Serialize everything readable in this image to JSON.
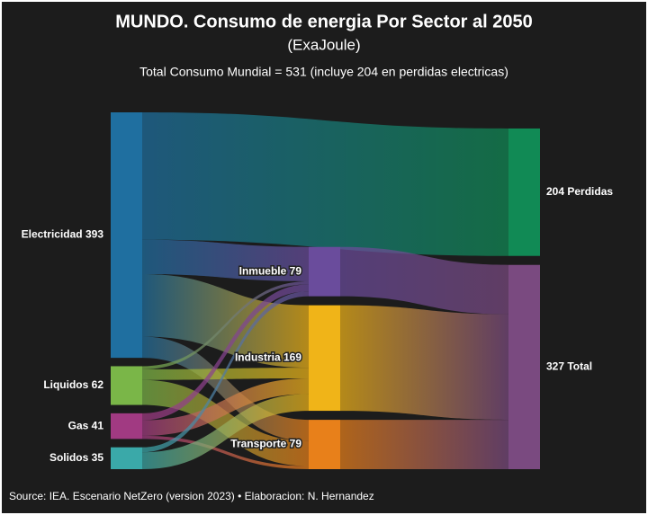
{
  "chart_data": {
    "type": "sankey",
    "title": "MUNDO. Consumo de energia Por Sector al 2050",
    "subtitle": "(ExaJoule)",
    "note": "Total Consumo Mundial = 531 (incluye 204 en perdidas electricas)",
    "source": "Source: IEA. Escenario NetZero (version 2023) • Elaboracion: N. Hernandez",
    "nodes": [
      {
        "label": "Electricidad 393",
        "value": 393,
        "color": "#1f6fa0"
      },
      {
        "label": "Liquidos 62",
        "value": 62,
        "color": "#7ab648"
      },
      {
        "label": "Gas 41",
        "value": 41,
        "color": "#a13a82"
      },
      {
        "label": "Solidos 35",
        "value": 35,
        "color": "#3aa9a9"
      },
      {
        "label": "Inmueble 79",
        "value": 79,
        "color": "#6a4c9c"
      },
      {
        "label": "Industria 169",
        "value": 169,
        "color": "#f0b418"
      },
      {
        "label": "Transporte 79",
        "value": 79,
        "color": "#e8801a"
      },
      {
        "label": "204 Perdidas",
        "value": 204,
        "color": "#118a55"
      },
      {
        "label": "327 Total",
        "value": 327,
        "color": "#7a4a80"
      }
    ],
    "links": [
      {
        "source": 0,
        "target": 7,
        "value": 204
      },
      {
        "source": 0,
        "target": 4,
        "value": 55
      },
      {
        "source": 0,
        "target": 5,
        "value": 100
      },
      {
        "source": 0,
        "target": 6,
        "value": 34
      },
      {
        "source": 1,
        "target": 4,
        "value": 5
      },
      {
        "source": 1,
        "target": 5,
        "value": 17
      },
      {
        "source": 1,
        "target": 6,
        "value": 40
      },
      {
        "source": 2,
        "target": 4,
        "value": 11
      },
      {
        "source": 2,
        "target": 5,
        "value": 25
      },
      {
        "source": 2,
        "target": 6,
        "value": 5
      },
      {
        "source": 3,
        "target": 4,
        "value": 8
      },
      {
        "source": 3,
        "target": 5,
        "value": 27
      },
      {
        "source": 4,
        "target": 8,
        "value": 79
      },
      {
        "source": 5,
        "target": 8,
        "value": 169
      },
      {
        "source": 6,
        "target": 8,
        "value": 79
      }
    ]
  }
}
